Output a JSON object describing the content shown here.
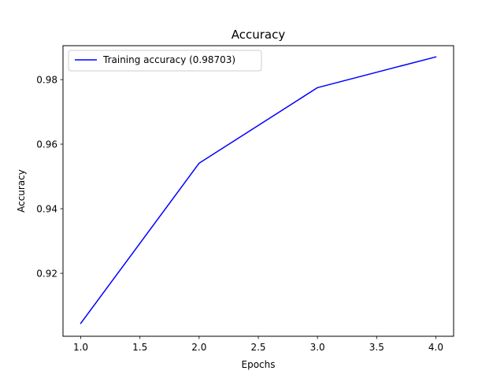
{
  "chart_data": {
    "type": "line",
    "title": "Accuracy",
    "xlabel": "Epochs",
    "ylabel": "Accuracy",
    "xlim": [
      0.85,
      4.15
    ],
    "ylim": [
      0.9005,
      0.9905
    ],
    "xticks": [
      1.0,
      1.5,
      2.0,
      2.5,
      3.0,
      3.5,
      4.0
    ],
    "xtick_labels": [
      "1.0",
      "1.5",
      "2.0",
      "2.5",
      "3.0",
      "3.5",
      "4.0"
    ],
    "yticks": [
      0.92,
      0.94,
      0.96,
      0.98
    ],
    "ytick_labels": [
      "0.92",
      "0.94",
      "0.96",
      "0.98"
    ],
    "grid": false,
    "legend_position": "top-left",
    "series": [
      {
        "name": "Training accuracy (0.98703)",
        "color": "#0000ff",
        "x": [
          1,
          2,
          3,
          4
        ],
        "y": [
          0.9045,
          0.9541,
          0.9775,
          0.98703
        ]
      }
    ]
  }
}
